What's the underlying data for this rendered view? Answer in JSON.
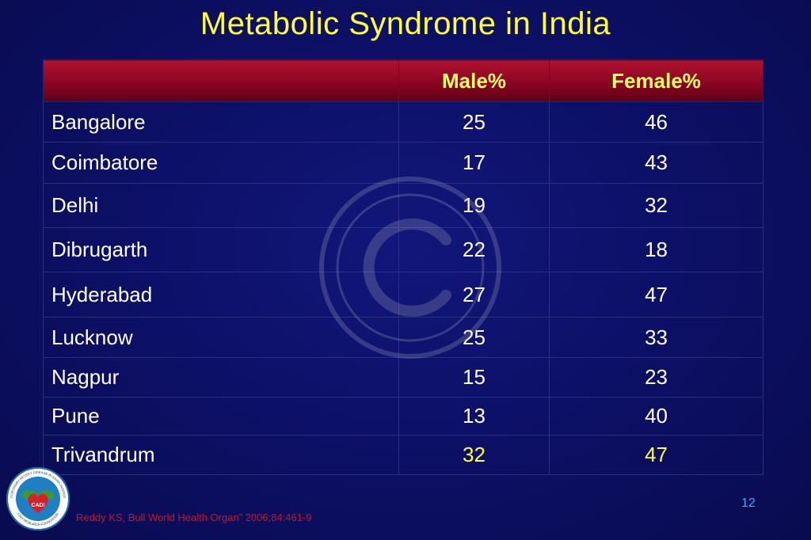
{
  "slide": {
    "title": "Metabolic Syndrome in India",
    "page_number": "12",
    "citation": "Reddy KS, Bull World Health Organ” 2006;84:461-9",
    "logo": {
      "name": "CADI",
      "ring_text": "CORONARY ARTERY DISEASE IN ASIAN INDIANS",
      "bottom_text": "CADI RESEARCH FOUNDATION"
    },
    "watermark_icon": "copyright-icon"
  },
  "table": {
    "headers": [
      "",
      "Male%",
      "Female%"
    ],
    "rows": [
      {
        "city": "Bangalore",
        "male": "25",
        "female": "46"
      },
      {
        "city": "Coimbatore",
        "male": "17",
        "female": "43"
      },
      {
        "city": "Delhi",
        "male": "19",
        "female": "32"
      },
      {
        "city": "Dibrugarth",
        "male": "22",
        "female": "18"
      },
      {
        "city": "Hyderabad",
        "male": "27",
        "female": "47"
      },
      {
        "city": "Lucknow",
        "male": "25",
        "female": "33"
      },
      {
        "city": "Nagpur",
        "male": "15",
        "female": "23"
      },
      {
        "city": "Pune",
        "male": "13",
        "female": "40"
      },
      {
        "city": "Trivandrum",
        "male": "32",
        "female": "47"
      }
    ]
  },
  "colors": {
    "background": "#0c0e5c",
    "title": "#ffff33",
    "header_fill": "#8a0522",
    "header_text": "#ffff66",
    "highlight_text": "#ffff33",
    "page_number": "#3aa8ff",
    "citation": "#d0131b"
  }
}
